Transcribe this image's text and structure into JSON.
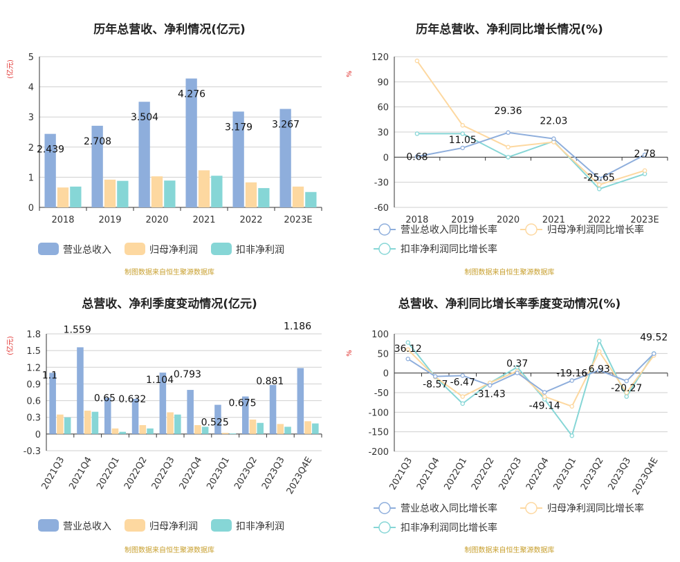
{
  "colors": {
    "revenue": "#8eaedc",
    "parent_profit": "#fdd8a0",
    "deducted_profit": "#86d6d6",
    "grid": "#cfcfcf",
    "axis": "#333333",
    "unit_red": "#e0312e",
    "source": "#c8a030",
    "title": "#222222"
  },
  "source_note": "制图数据来自恒生聚源数据库",
  "chart_data": [
    {
      "id": "annual_amounts",
      "type": "bar",
      "title": "历年总营收、净利情况(亿元)",
      "ylabel": "(亿元)",
      "ylim": [
        0,
        5
      ],
      "yticks": [
        0,
        1,
        2,
        3,
        4,
        5
      ],
      "categories": [
        "2018",
        "2019",
        "2020",
        "2021",
        "2022",
        "2023E"
      ],
      "series": [
        {
          "name": "营业总收入",
          "values": [
            2.439,
            2.708,
            3.504,
            4.276,
            3.179,
            3.267
          ]
        },
        {
          "name": "归母净利润",
          "values": [
            0.66,
            0.92,
            1.03,
            1.23,
            0.83,
            0.69
          ]
        },
        {
          "name": "扣非净利润",
          "values": [
            0.69,
            0.88,
            0.89,
            1.05,
            0.64,
            0.51
          ]
        }
      ],
      "data_labels": [
        "2.439",
        "2.708",
        "3.504",
        "4.276",
        "3.179",
        "3.267"
      ],
      "grid": true,
      "legend": "bottom-left"
    },
    {
      "id": "annual_growth",
      "type": "line",
      "title": "历年总营收、净利同比增长情况(%)",
      "ylabel": "%",
      "ylim": [
        -60,
        120
      ],
      "yticks": [
        -60,
        -30,
        0,
        30,
        60,
        90,
        120
      ],
      "categories": [
        "2018",
        "2019",
        "2020",
        "2021",
        "2022",
        "2023E"
      ],
      "series": [
        {
          "name": "营业总收入同比增长率",
          "values": [
            0.68,
            11.05,
            29.36,
            22.03,
            -25.65,
            2.78
          ]
        },
        {
          "name": "归母净利润同比增长率",
          "values": [
            115,
            38,
            12,
            18,
            -33,
            -16
          ]
        },
        {
          "name": "扣非净利润同比增长率",
          "values": [
            28,
            28,
            0,
            19,
            -38,
            -20
          ]
        }
      ],
      "data_labels": [
        "0.68",
        "11.05",
        "29.36",
        "22.03",
        "-25.65",
        "2.78"
      ],
      "grid": true,
      "legend": "bottom"
    },
    {
      "id": "quarterly_amounts",
      "type": "bar",
      "title": "总营收、净利季度变动情况(亿元)",
      "ylabel": "(亿元)",
      "ylim": [
        -0.3,
        1.8
      ],
      "yticks": [
        -0.3,
        0,
        0.3,
        0.6,
        0.9,
        1.2,
        1.5,
        1.8
      ],
      "categories": [
        "2021Q3",
        "2021Q4",
        "2022Q1",
        "2022Q2",
        "2022Q3",
        "2022Q4",
        "2023Q1",
        "2023Q2",
        "2023Q3",
        "2023Q4E"
      ],
      "series": [
        {
          "name": "营业总收入",
          "values": [
            1.1,
            1.559,
            0.65,
            0.632,
            1.104,
            0.793,
            0.525,
            0.675,
            0.881,
            1.186
          ]
        },
        {
          "name": "归母净利润",
          "values": [
            0.35,
            0.42,
            0.1,
            0.16,
            0.39,
            0.16,
            0.02,
            0.26,
            0.18,
            0.23
          ]
        },
        {
          "name": "扣非净利润",
          "values": [
            0.3,
            0.4,
            0.04,
            0.1,
            0.35,
            0.13,
            0.01,
            0.2,
            0.13,
            0.19
          ]
        }
      ],
      "data_labels": [
        "1.1",
        "1.559",
        "0.65",
        "0.632",
        "1.104",
        "0.793",
        "0.525",
        "0.675",
        "0.881",
        "1.186"
      ],
      "grid": true,
      "legend": "bottom-left"
    },
    {
      "id": "quarterly_growth",
      "type": "line",
      "title": "总营收、净利同比增长率季度变动情况(%)",
      "ylabel": "%",
      "ylim": [
        -200,
        100
      ],
      "yticks": [
        -200,
        -150,
        -100,
        -50,
        0,
        50,
        100
      ],
      "categories": [
        "2021Q3",
        "2021Q4",
        "2022Q1",
        "2022Q2",
        "2022Q3",
        "2022Q4",
        "2023Q1",
        "2023Q2",
        "2023Q3",
        "2023Q4E"
      ],
      "series": [
        {
          "name": "营业总收入同比增长率",
          "values": [
            36.12,
            -8.57,
            -6.47,
            -31.43,
            0.37,
            -49.14,
            -19.16,
            6.93,
            -20.27,
            49.52
          ]
        },
        {
          "name": "归母净利润同比增长率",
          "values": [
            60,
            -10,
            -60,
            -25,
            5,
            -60,
            -85,
            55,
            -50,
            45
          ]
        },
        {
          "name": "扣非净利润同比增长率",
          "values": [
            78,
            -10,
            -78,
            -25,
            15,
            -67,
            -160,
            82,
            -60,
            50
          ]
        }
      ],
      "data_labels": [
        "36.12",
        "-8.57",
        "-6.47",
        "-31.43",
        "0.37",
        "-49.14",
        "-19.16",
        "6.93",
        "-20.27",
        "49.52"
      ],
      "grid": true,
      "legend": "bottom"
    }
  ]
}
